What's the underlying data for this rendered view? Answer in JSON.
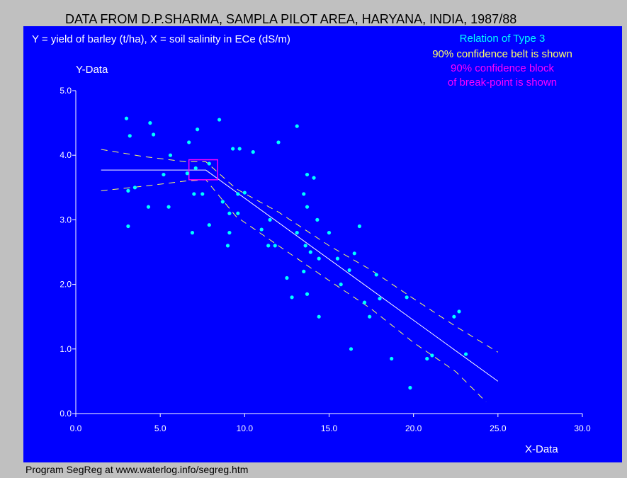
{
  "title": "DATA FROM D.P.SHARMA, SAMPLA PILOT AREA, HARYANA, INDIA, 1987/88",
  "footer": "Program SegReg at www.waterlog.info/segreg.htm",
  "colors": {
    "panel": "#0000ff",
    "points": "#00ffff",
    "regression": "#ffffff",
    "confidence": "#ffff66",
    "block": "#ff00ff",
    "text": "#ffffff",
    "type_label": "#00ffff",
    "belt_label": "#ffff66",
    "block_label": "#ff00ff"
  },
  "chart_data": {
    "type": "scatter",
    "title": "DATA FROM D.P.SHARMA, SAMPLA PILOT AREA, HARYANA, INDIA, 1987/88",
    "subtitle": "Y = yield of barley (t/ha), X = soil salinity in ECe (dS/m)",
    "xlabel": "X-Data",
    "ylabel": "Y-Data",
    "xlim": [
      0,
      30
    ],
    "ylim": [
      0,
      5
    ],
    "x_ticks": [
      "0.0",
      "5.0",
      "10.0",
      "15.0",
      "20.0",
      "25.0",
      "30.0"
    ],
    "y_ticks": [
      "0.0",
      "1.0",
      "2.0",
      "3.0",
      "4.0",
      "5.0"
    ],
    "grid": false,
    "annotations": [
      "Relation of Type 3",
      "90% confidence belt is shown",
      "90% confidence block",
      "of break-point is shown"
    ],
    "points": [
      [
        3.0,
        4.57
      ],
      [
        3.2,
        4.3
      ],
      [
        4.4,
        4.5
      ],
      [
        4.6,
        4.32
      ],
      [
        7.2,
        4.4
      ],
      [
        8.5,
        4.55
      ],
      [
        6.7,
        4.2
      ],
      [
        12.0,
        4.2
      ],
      [
        13.1,
        4.45
      ],
      [
        9.3,
        4.1
      ],
      [
        9.7,
        4.1
      ],
      [
        10.5,
        4.05
      ],
      [
        5.6,
        4.0
      ],
      [
        7.1,
        3.8
      ],
      [
        7.9,
        3.87
      ],
      [
        5.2,
        3.7
      ],
      [
        6.6,
        3.72
      ],
      [
        3.1,
        3.45
      ],
      [
        3.5,
        3.5
      ],
      [
        7.0,
        3.4
      ],
      [
        7.5,
        3.4
      ],
      [
        9.6,
        3.4
      ],
      [
        10.0,
        3.42
      ],
      [
        8.7,
        3.28
      ],
      [
        4.3,
        3.2
      ],
      [
        5.5,
        3.2
      ],
      [
        9.1,
        3.1
      ],
      [
        9.6,
        3.1
      ],
      [
        3.1,
        2.9
      ],
      [
        7.9,
        2.92
      ],
      [
        6.9,
        2.8
      ],
      [
        9.1,
        2.8
      ],
      [
        11.0,
        2.85
      ],
      [
        11.5,
        3.0
      ],
      [
        9.0,
        2.6
      ],
      [
        11.4,
        2.6
      ],
      [
        11.8,
        2.6
      ],
      [
        13.7,
        3.7
      ],
      [
        14.1,
        3.65
      ],
      [
        13.5,
        3.4
      ],
      [
        13.7,
        3.2
      ],
      [
        14.3,
        3.0
      ],
      [
        15.0,
        2.8
      ],
      [
        16.8,
        2.9
      ],
      [
        13.1,
        2.8
      ],
      [
        13.6,
        2.6
      ],
      [
        13.9,
        2.5
      ],
      [
        14.4,
        2.4
      ],
      [
        15.5,
        2.4
      ],
      [
        16.5,
        2.48
      ],
      [
        16.2,
        2.22
      ],
      [
        13.5,
        2.2
      ],
      [
        12.5,
        2.1
      ],
      [
        15.7,
        2.0
      ],
      [
        17.8,
        2.15
      ],
      [
        12.8,
        1.8
      ],
      [
        13.7,
        1.85
      ],
      [
        17.1,
        1.72
      ],
      [
        18.0,
        1.78
      ],
      [
        19.6,
        1.8
      ],
      [
        14.4,
        1.5
      ],
      [
        17.4,
        1.5
      ],
      [
        22.4,
        1.5
      ],
      [
        22.7,
        1.58
      ],
      [
        16.3,
        1.0
      ],
      [
        23.1,
        0.92
      ],
      [
        21.1,
        0.9
      ],
      [
        20.8,
        0.85
      ],
      [
        18.7,
        0.85
      ],
      [
        19.8,
        0.4
      ]
    ],
    "regression": {
      "breakpoint_x": 7.7,
      "plateau_y": 3.77,
      "end_x": 25.0,
      "end_y": 0.5,
      "start_x": 1.5
    },
    "confidence_belt": {
      "upper": [
        [
          1.5,
          4.09
        ],
        [
          4.0,
          3.98
        ],
        [
          6.5,
          3.9
        ],
        [
          7.7,
          3.9
        ],
        [
          9.5,
          3.48
        ],
        [
          12.0,
          3.12
        ],
        [
          15.0,
          2.6
        ],
        [
          17.5,
          2.22
        ],
        [
          20.0,
          1.78
        ],
        [
          22.5,
          1.35
        ],
        [
          25.0,
          0.95
        ]
      ],
      "lower": [
        [
          1.5,
          3.45
        ],
        [
          4.0,
          3.52
        ],
        [
          6.5,
          3.6
        ],
        [
          7.7,
          3.62
        ],
        [
          9.5,
          3.05
        ],
        [
          12.0,
          2.6
        ],
        [
          15.0,
          2.06
        ],
        [
          17.5,
          1.62
        ],
        [
          20.0,
          1.1
        ],
        [
          22.5,
          0.65
        ],
        [
          24.3,
          0.18
        ]
      ]
    },
    "breakpoint_block": {
      "x": [
        6.7,
        8.4
      ],
      "y": [
        3.62,
        3.93
      ]
    }
  }
}
